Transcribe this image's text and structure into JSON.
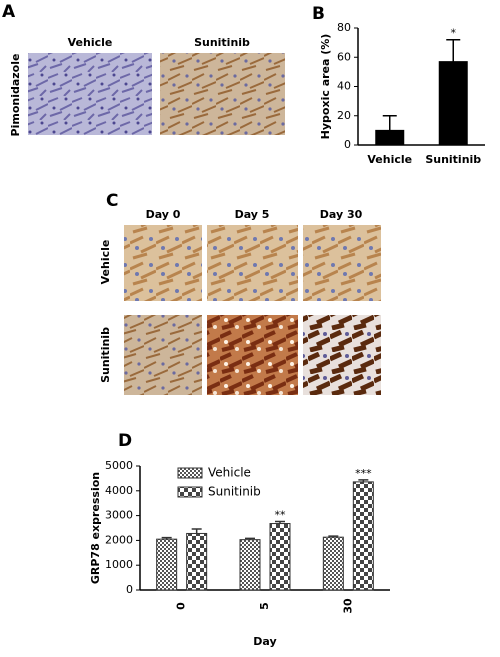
{
  "figure": {
    "panel_labels": [
      "A",
      "B",
      "C",
      "D"
    ],
    "a_columns": [
      "Vehicle",
      "Sunitinib"
    ],
    "a_row": "Pimonidazole",
    "c_columns": [
      "Day 0",
      "Day 5",
      "Day 30"
    ],
    "c_rows": [
      "Vehicle",
      "Sunitinib"
    ]
  },
  "chart_data": [
    {
      "type": "bar",
      "ylabel": "Hypoxic area (%)",
      "categories": [
        "Vehicle",
        "Sunitinib"
      ],
      "values": [
        10,
        57
      ],
      "errors": [
        10,
        15
      ],
      "annotations": [
        null,
        "*"
      ],
      "color": "#000000",
      "ylim": [
        0,
        80
      ],
      "yticks": [
        0,
        20,
        40,
        60,
        80
      ]
    },
    {
      "type": "bar",
      "ylabel": "GRP78 expression",
      "xlabel": "Day",
      "categories": [
        "0",
        "5",
        "30"
      ],
      "series": [
        {
          "name": "Vehicle",
          "color": "#333333",
          "hatch": "fine",
          "values": [
            2050,
            2030,
            2130
          ],
          "errors": [
            60,
            50,
            40
          ],
          "annotations": [
            null,
            null,
            null
          ]
        },
        {
          "name": "Sunitinib",
          "color": "#333333",
          "hatch": "coarse",
          "values": [
            2280,
            2680,
            4360
          ],
          "errors": [
            180,
            80,
            80
          ],
          "annotations": [
            null,
            "**",
            "***"
          ]
        }
      ],
      "legend": "upper left",
      "ylim": [
        0,
        5000
      ],
      "yticks": [
        0,
        1000,
        2000,
        3000,
        4000,
        5000
      ]
    }
  ]
}
